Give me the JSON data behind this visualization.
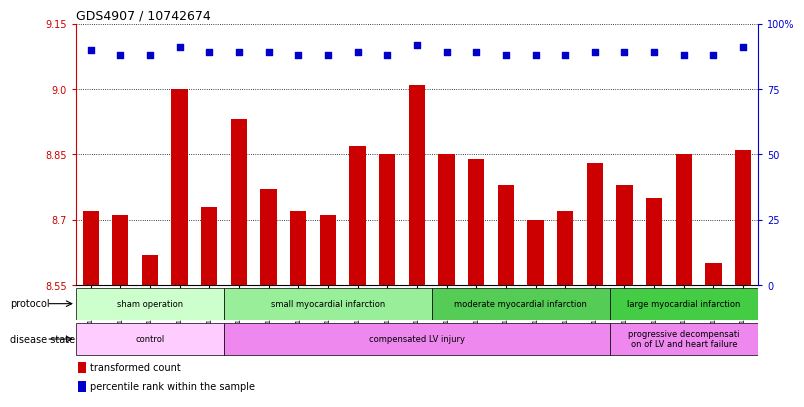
{
  "title": "GDS4907 / 10742674",
  "samples": [
    "GSM1151154",
    "GSM1151155",
    "GSM1151156",
    "GSM1151157",
    "GSM1151158",
    "GSM1151159",
    "GSM1151160",
    "GSM1151161",
    "GSM1151162",
    "GSM1151163",
    "GSM1151164",
    "GSM1151165",
    "GSM1151166",
    "GSM1151167",
    "GSM1151168",
    "GSM1151169",
    "GSM1151170",
    "GSM1151171",
    "GSM1151172",
    "GSM1151173",
    "GSM1151174",
    "GSM1151175",
    "GSM1151176"
  ],
  "bar_values": [
    8.72,
    8.71,
    8.62,
    9.0,
    8.73,
    8.93,
    8.77,
    8.72,
    8.71,
    8.87,
    8.85,
    9.01,
    8.85,
    8.84,
    8.78,
    8.7,
    8.72,
    8.83,
    8.78,
    8.75,
    8.85,
    8.6,
    8.86
  ],
  "percentile_values": [
    90,
    88,
    88,
    91,
    89,
    89,
    89,
    88,
    88,
    89,
    88,
    92,
    89,
    89,
    88,
    88,
    88,
    89,
    89,
    89,
    88,
    88,
    91
  ],
  "bar_color": "#cc0000",
  "dot_color": "#0000cc",
  "ylim_left": [
    8.55,
    9.15
  ],
  "ylim_right": [
    0,
    100
  ],
  "yticks_left": [
    8.55,
    8.7,
    8.85,
    9.0,
    9.15
  ],
  "yticks_right": [
    0,
    25,
    50,
    75,
    100
  ],
  "ytick_labels_right": [
    "0",
    "25",
    "50",
    "75",
    "100%"
  ],
  "protocol_groups": [
    {
      "label": "sham operation",
      "start": 0,
      "end": 4,
      "color": "#ccffcc"
    },
    {
      "label": "small myocardial infarction",
      "start": 5,
      "end": 11,
      "color": "#99ee99"
    },
    {
      "label": "moderate myocardial infarction",
      "start": 12,
      "end": 17,
      "color": "#55cc55"
    },
    {
      "label": "large myocardial infarction",
      "start": 18,
      "end": 22,
      "color": "#44cc44"
    }
  ],
  "disease_groups": [
    {
      "label": "control",
      "start": 0,
      "end": 4,
      "color": "#ffccff"
    },
    {
      "label": "compensated LV injury",
      "start": 5,
      "end": 17,
      "color": "#ee88ee"
    },
    {
      "label": "progressive decompensati\non of LV and heart failure",
      "start": 18,
      "end": 22,
      "color": "#ee88ee"
    }
  ],
  "protocol_label": "protocol",
  "disease_label": "disease state",
  "legend_bar_label": "transformed count",
  "legend_dot_label": "percentile rank within the sample",
  "bg_color": "#ffffff",
  "tick_color_left": "#cc0000",
  "tick_color_right": "#0000cc"
}
